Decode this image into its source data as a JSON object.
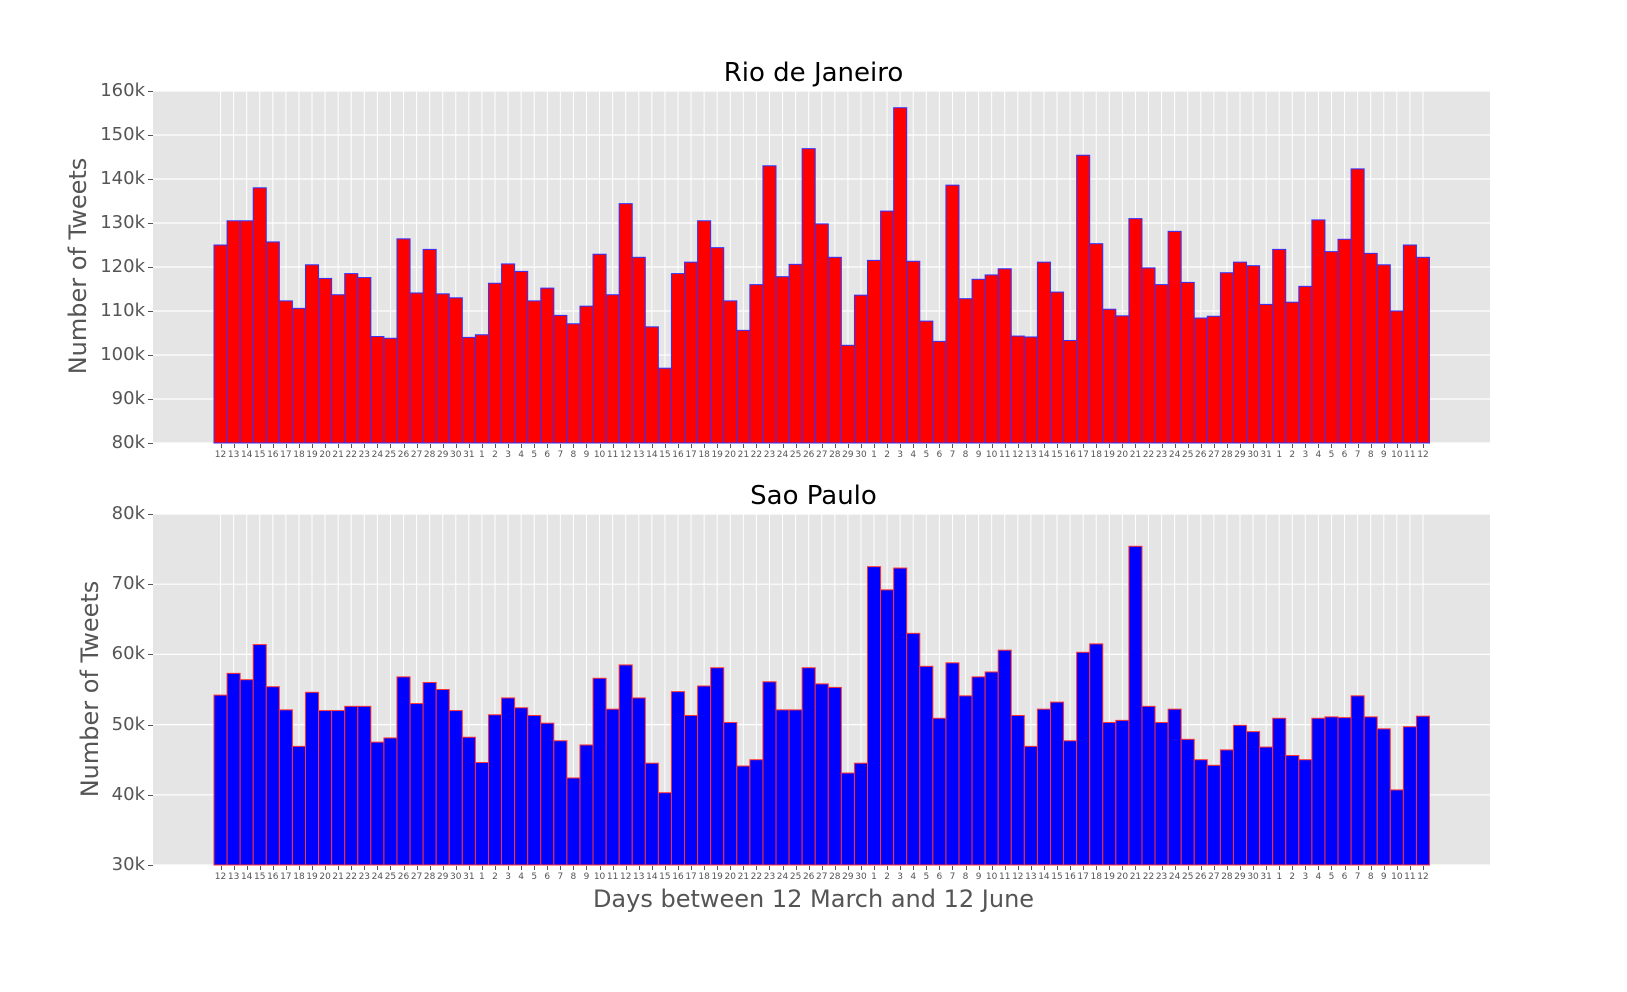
{
  "chart_data": [
    {
      "type": "bar",
      "title": "Rio de Janeiro",
      "xlabel": "",
      "ylabel": "Number of Tweets",
      "ylim": [
        80000,
        160000
      ],
      "yticks": [
        "80k",
        "90k",
        "100k",
        "110k",
        "120k",
        "130k",
        "140k",
        "150k",
        "160k"
      ],
      "grid": true,
      "bar_color": "#ff0000",
      "edge_color": "#3333ff",
      "categories": [
        "12",
        "13",
        "14",
        "15",
        "16",
        "17",
        "18",
        "19",
        "20",
        "21",
        "22",
        "23",
        "24",
        "25",
        "26",
        "27",
        "28",
        "29",
        "30",
        "31",
        "1",
        "2",
        "3",
        "4",
        "5",
        "6",
        "7",
        "8",
        "9",
        "10",
        "11",
        "12",
        "13",
        "14",
        "15",
        "16",
        "17",
        "18",
        "19",
        "20",
        "21",
        "22",
        "23",
        "24",
        "25",
        "26",
        "27",
        "28",
        "29",
        "30",
        "1",
        "2",
        "3",
        "4",
        "5",
        "6",
        "7",
        "8",
        "9",
        "10",
        "11",
        "12",
        "13",
        "14",
        "15",
        "16",
        "17",
        "18",
        "19",
        "20",
        "21",
        "22",
        "23",
        "24",
        "25",
        "26",
        "27",
        "28",
        "29",
        "30",
        "31",
        "1",
        "2",
        "3",
        "4",
        "5",
        "6",
        "7",
        "8",
        "9",
        "10",
        "11",
        "12"
      ],
      "values": [
        125000,
        130500,
        130500,
        138000,
        125700,
        112300,
        110600,
        120500,
        117400,
        113700,
        118500,
        117600,
        104200,
        103800,
        126400,
        114100,
        124000,
        113900,
        113000,
        104000,
        104600,
        116300,
        120700,
        119000,
        112300,
        115200,
        109000,
        107100,
        111100,
        122900,
        113700,
        134400,
        122200,
        106400,
        97000,
        118500,
        121100,
        130500,
        124400,
        112300,
        105600,
        116000,
        143000,
        117800,
        120600,
        146900,
        129800,
        122200,
        102200,
        113600,
        121500,
        132700,
        156200,
        121300,
        107700,
        103100,
        138600,
        112800,
        117200,
        118200,
        119600,
        104300,
        104100,
        121100,
        114300,
        103300,
        145400,
        125300,
        110400,
        108900,
        131000,
        119800,
        116000,
        128100,
        116500,
        108400,
        108800,
        118700,
        121100,
        120300,
        111500,
        124000,
        112000,
        115600,
        130700,
        123500,
        126300,
        142300,
        123100,
        120500,
        110000,
        125000,
        122200
      ]
    },
    {
      "type": "bar",
      "title": "Sao Paulo",
      "xlabel": "Days between 12 March and 12 June",
      "ylabel": "Number of Tweets",
      "ylim": [
        30000,
        80000
      ],
      "yticks": [
        "30k",
        "40k",
        "50k",
        "60k",
        "70k",
        "80k"
      ],
      "grid": true,
      "bar_color": "#0000ff",
      "edge_color": "#ff3333",
      "categories": [
        "12",
        "13",
        "14",
        "15",
        "16",
        "17",
        "18",
        "19",
        "20",
        "21",
        "22",
        "23",
        "24",
        "25",
        "26",
        "27",
        "28",
        "29",
        "30",
        "31",
        "1",
        "2",
        "3",
        "4",
        "5",
        "6",
        "7",
        "8",
        "9",
        "10",
        "11",
        "12",
        "13",
        "14",
        "15",
        "16",
        "17",
        "18",
        "19",
        "20",
        "21",
        "22",
        "23",
        "24",
        "25",
        "26",
        "27",
        "28",
        "29",
        "30",
        "1",
        "2",
        "3",
        "4",
        "5",
        "6",
        "7",
        "8",
        "9",
        "10",
        "11",
        "12",
        "13",
        "14",
        "15",
        "16",
        "17",
        "18",
        "19",
        "20",
        "21",
        "22",
        "23",
        "24",
        "25",
        "26",
        "27",
        "28",
        "29",
        "30",
        "31",
        "1",
        "2",
        "3",
        "4",
        "5",
        "6",
        "7",
        "8",
        "9",
        "10",
        "11",
        "12"
      ],
      "values": [
        54200,
        57300,
        56400,
        61400,
        55400,
        52100,
        46900,
        54600,
        52000,
        52000,
        52600,
        52600,
        47500,
        48100,
        56800,
        53000,
        56000,
        55000,
        52000,
        48200,
        44600,
        51400,
        53800,
        52400,
        51300,
        50200,
        47700,
        42400,
        47100,
        56600,
        52200,
        58500,
        53800,
        44500,
        40300,
        54700,
        51300,
        55500,
        58100,
        50300,
        44100,
        45000,
        56100,
        52100,
        52100,
        58100,
        55800,
        55300,
        43100,
        44500,
        72500,
        69200,
        72300,
        63000,
        58300,
        50900,
        58800,
        54100,
        56800,
        57500,
        60600,
        51300,
        46900,
        52200,
        53200,
        47700,
        60300,
        61500,
        50300,
        50600,
        75400,
        52600,
        50300,
        52200,
        47900,
        45000,
        44200,
        46400,
        49900,
        49000,
        46800,
        50900,
        45600,
        45000,
        50900,
        51100,
        51000,
        54100,
        51100,
        49400,
        40700,
        49700,
        51200
      ]
    }
  ],
  "charts": {
    "top": {
      "title": "Rio de Janeiro",
      "ylabel": "Number of Tweets"
    },
    "bottom": {
      "title": "Sao Paulo",
      "ylabel": "Number of Tweets",
      "xlabel": "Days between 12 March and 12 June"
    }
  }
}
